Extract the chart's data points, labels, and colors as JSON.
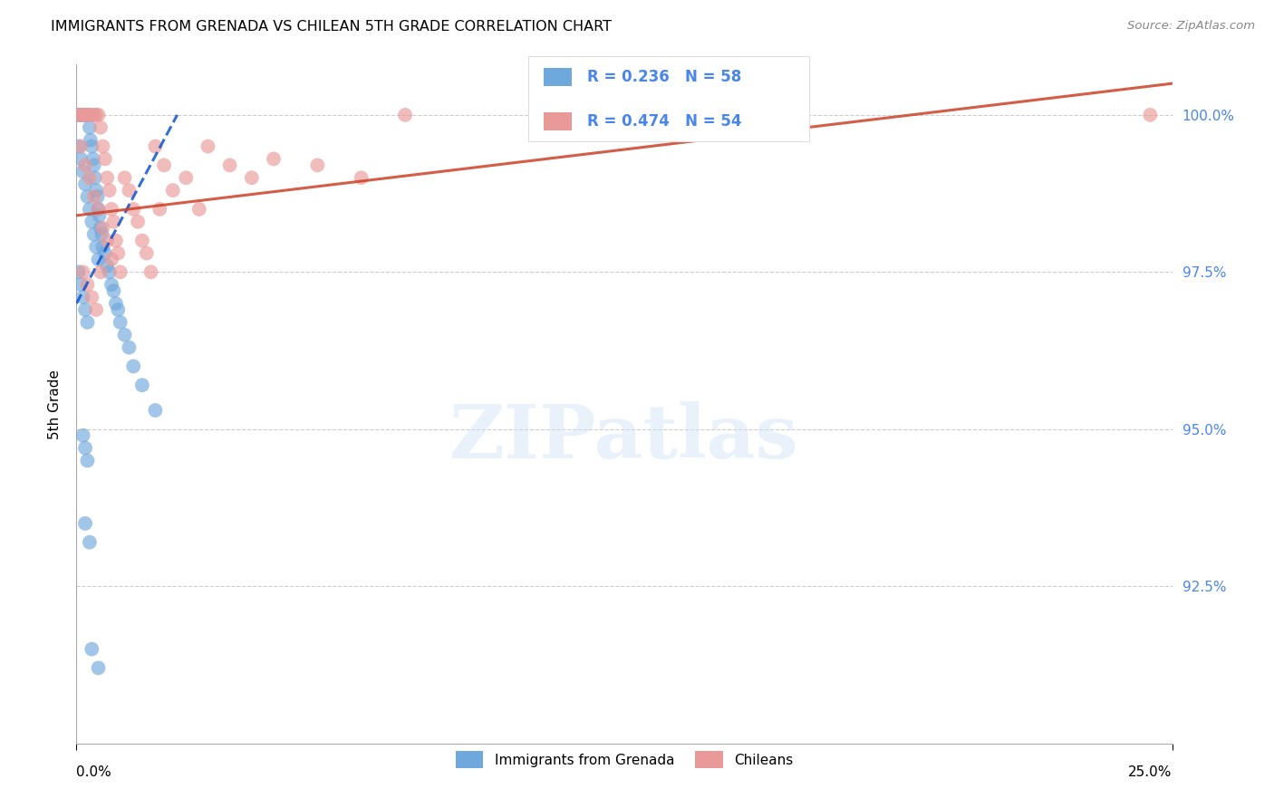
{
  "title": "IMMIGRANTS FROM GRENADA VS CHILEAN 5TH GRADE CORRELATION CHART",
  "source": "Source: ZipAtlas.com",
  "ylabel": "5th Grade",
  "yticks": [
    90.0,
    92.5,
    95.0,
    97.5,
    100.0
  ],
  "ytick_labels_right": [
    "",
    "92.5%",
    "95.0%",
    "97.5%",
    "100.0%"
  ],
  "xmin": 0.0,
  "xmax": 25.0,
  "ymin": 90.0,
  "ymax": 100.8,
  "legend_blue_r": "R = 0.236",
  "legend_blue_n": "N = 58",
  "legend_pink_r": "R = 0.474",
  "legend_pink_n": "N = 54",
  "legend_label_blue": "Immigrants from Grenada",
  "legend_label_pink": "Chileans",
  "blue_color": "#6fa8dc",
  "pink_color": "#ea9999",
  "blue_line_color": "#1155cc",
  "pink_line_color": "#cc4125",
  "watermark_text": "ZIPatlas",
  "blue_dots_x": [
    0.05,
    0.08,
    0.1,
    0.12,
    0.15,
    0.18,
    0.2,
    0.22,
    0.25,
    0.28,
    0.3,
    0.32,
    0.35,
    0.38,
    0.4,
    0.42,
    0.45,
    0.48,
    0.5,
    0.52,
    0.55,
    0.58,
    0.6,
    0.65,
    0.7,
    0.75,
    0.8,
    0.85,
    0.9,
    0.95,
    1.0,
    1.1,
    1.2,
    1.3,
    1.5,
    1.8,
    0.05,
    0.1,
    0.15,
    0.2,
    0.25,
    0.3,
    0.35,
    0.4,
    0.45,
    0.5,
    0.05,
    0.1,
    0.15,
    0.2,
    0.25,
    0.15,
    0.2,
    0.25,
    0.2,
    0.3,
    0.35,
    0.5
  ],
  "blue_dots_y": [
    100.0,
    100.0,
    100.0,
    100.0,
    100.0,
    100.0,
    100.0,
    100.0,
    100.0,
    100.0,
    99.8,
    99.6,
    99.5,
    99.3,
    99.2,
    99.0,
    98.8,
    98.7,
    98.5,
    98.4,
    98.2,
    98.1,
    97.9,
    97.8,
    97.6,
    97.5,
    97.3,
    97.2,
    97.0,
    96.9,
    96.7,
    96.5,
    96.3,
    96.0,
    95.7,
    95.3,
    99.5,
    99.3,
    99.1,
    98.9,
    98.7,
    98.5,
    98.3,
    98.1,
    97.9,
    97.7,
    97.5,
    97.3,
    97.1,
    96.9,
    96.7,
    94.9,
    94.7,
    94.5,
    93.5,
    93.2,
    91.5,
    91.2
  ],
  "pink_dots_x": [
    0.05,
    0.1,
    0.15,
    0.2,
    0.25,
    0.3,
    0.35,
    0.4,
    0.45,
    0.5,
    0.55,
    0.6,
    0.65,
    0.7,
    0.75,
    0.8,
    0.85,
    0.9,
    0.95,
    1.0,
    1.1,
    1.2,
    1.3,
    1.4,
    1.5,
    1.6,
    1.7,
    1.8,
    1.9,
    2.0,
    2.2,
    2.5,
    2.8,
    3.0,
    3.5,
    4.0,
    4.5,
    5.5,
    6.5,
    7.5,
    0.1,
    0.2,
    0.3,
    0.4,
    0.5,
    0.6,
    0.7,
    0.8,
    0.15,
    0.25,
    0.35,
    0.45,
    0.55,
    24.5
  ],
  "pink_dots_y": [
    100.0,
    100.0,
    100.0,
    100.0,
    100.0,
    100.0,
    100.0,
    100.0,
    100.0,
    100.0,
    99.8,
    99.5,
    99.3,
    99.0,
    98.8,
    98.5,
    98.3,
    98.0,
    97.8,
    97.5,
    99.0,
    98.8,
    98.5,
    98.3,
    98.0,
    97.8,
    97.5,
    99.5,
    98.5,
    99.2,
    98.8,
    99.0,
    98.5,
    99.5,
    99.2,
    99.0,
    99.3,
    99.2,
    99.0,
    100.0,
    99.5,
    99.2,
    99.0,
    98.7,
    98.5,
    98.2,
    98.0,
    97.7,
    97.5,
    97.3,
    97.1,
    96.9,
    97.5,
    100.0
  ],
  "blue_trend_x": [
    0.0,
    2.3
  ],
  "blue_trend_y": [
    97.0,
    100.0
  ],
  "pink_trend_x": [
    0.0,
    25.0
  ],
  "pink_trend_y": [
    98.4,
    100.5
  ]
}
